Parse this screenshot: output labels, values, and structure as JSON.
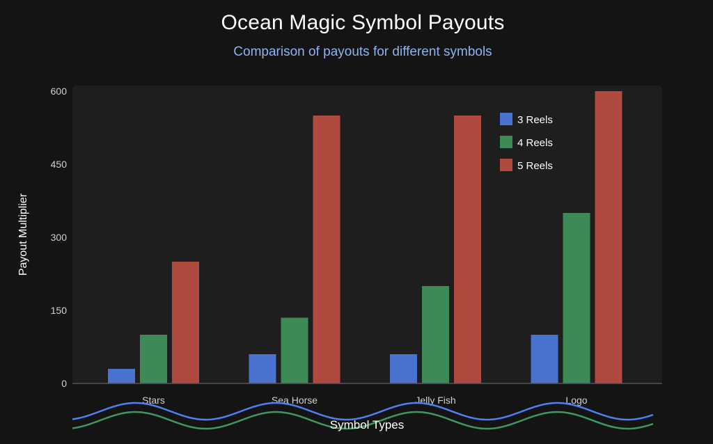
{
  "chart_data": {
    "type": "bar",
    "title": "Ocean Magic Symbol Payouts",
    "subtitle": "Comparison of payouts for different symbols",
    "xlabel": "Symbol Types",
    "ylabel": "Payout Multiplier",
    "categories": [
      "Stars",
      "Sea Horse",
      "Jelly Fish",
      "Logo"
    ],
    "series": [
      {
        "name": "3 Reels",
        "color": "#4a72d1",
        "values": [
          30,
          60,
          60,
          100
        ]
      },
      {
        "name": "4 Reels",
        "color": "#3d8a57",
        "values": [
          100,
          135,
          200,
          350
        ]
      },
      {
        "name": "5 Reels",
        "color": "#b04a3e",
        "values": [
          250,
          550,
          550,
          600
        ]
      }
    ],
    "ylim": [
      0,
      600
    ],
    "yticks": [
      0,
      150,
      300,
      450,
      600
    ],
    "grid": false,
    "legend_position": "top-right",
    "colors": {
      "background": "#141414",
      "plot_background": "#1e1e1e",
      "text": "#ffffff",
      "subtitle": "#8fb3f0",
      "tick": "#d0d0d0",
      "axis": "#555555",
      "wave_blue": "#4f7ff0",
      "wave_green": "#3d9a5e"
    }
  }
}
